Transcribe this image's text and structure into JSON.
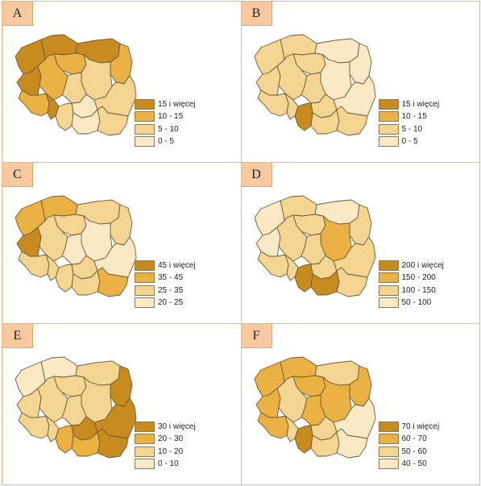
{
  "colors": [
    "#fbe9c6",
    "#f4d592",
    "#e9b242",
    "#c88c1e"
  ],
  "panels": [
    {
      "label": "A",
      "legend": [
        "15 i więcej",
        "10 - 15",
        "5 - 10",
        "0 - 5"
      ],
      "classes": {
        "zp": 3,
        "pm": 3,
        "wm": 3,
        "kp": 2,
        "pd": 2,
        "lb": 3,
        "wp": 2,
        "ds": 2,
        "op": 3,
        "ld": 1,
        "mz": 1,
        "lu": 1,
        "sl": 1,
        "sw": 0,
        "ma": 0,
        "pk": 1
      }
    },
    {
      "label": "B",
      "legend": [
        "15 i więcej",
        "10 - 15",
        "5 - 10",
        "0 - 5"
      ],
      "classes": {
        "zp": 1,
        "pm": 1,
        "wm": 0,
        "kp": 1,
        "pd": 0,
        "lb": 1,
        "wp": 1,
        "ds": 1,
        "op": 1,
        "ld": 1,
        "mz": 0,
        "lu": 0,
        "sl": 3,
        "sw": 1,
        "ma": 1,
        "pk": 1
      }
    },
    {
      "label": "C",
      "legend": [
        "45 i więcej",
        "35 - 45",
        "25 - 35",
        "20 - 25"
      ],
      "classes": {
        "zp": 2,
        "pm": 2,
        "wm": 1,
        "kp": 1,
        "pd": 1,
        "lb": 3,
        "wp": 1,
        "ds": 1,
        "op": 1,
        "ld": 0,
        "mz": 0,
        "lu": 0,
        "sl": 1,
        "sw": 1,
        "ma": 1,
        "pk": 2
      }
    },
    {
      "label": "D",
      "legend": [
        "200 i więcej",
        "150 - 200",
        "100 - 150",
        "50 - 100"
      ],
      "classes": {
        "zp": 0,
        "pm": 1,
        "wm": 0,
        "kp": 1,
        "pd": 1,
        "lb": 0,
        "wp": 1,
        "ds": 1,
        "op": 1,
        "ld": 1,
        "mz": 2,
        "lu": 1,
        "sl": 3,
        "sw": 1,
        "ma": 3,
        "pk": 1
      }
    },
    {
      "label": "E",
      "legend": [
        "30 i więcej",
        "20 - 30",
        "10 - 20",
        "0 - 10"
      ],
      "classes": {
        "zp": 0,
        "pm": 0,
        "wm": 1,
        "kp": 1,
        "pd": 3,
        "lb": 1,
        "wp": 1,
        "ds": 1,
        "op": 1,
        "ld": 1,
        "mz": 1,
        "lu": 3,
        "sl": 2,
        "sw": 3,
        "ma": 2,
        "pk": 3
      }
    },
    {
      "label": "F",
      "legend": [
        "70 i więcej",
        "60 - 70",
        "50 - 60",
        "40 - 50"
      ],
      "classes": {
        "zp": 2,
        "pm": 2,
        "wm": 1,
        "kp": 2,
        "pd": 2,
        "lb": 2,
        "wp": 1,
        "ds": 2,
        "op": 1,
        "ld": 2,
        "mz": 2,
        "lu": 0,
        "sl": 3,
        "sw": 1,
        "ma": 1,
        "pk": 0
      }
    }
  ]
}
